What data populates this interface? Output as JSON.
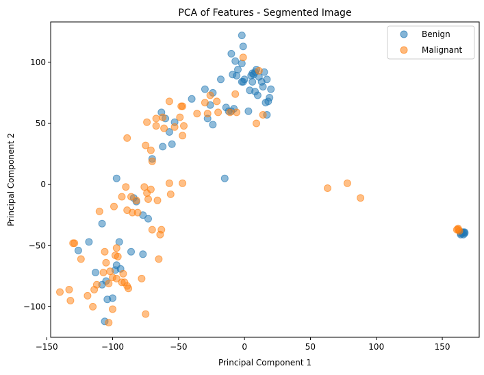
{
  "chart_data": {
    "type": "scatter",
    "title": "PCA of Features - Segmented Image",
    "xlabel": "Principal Component 1",
    "ylabel": "Principal Component 2",
    "xlim": [
      -147,
      178
    ],
    "ylim": [
      -125,
      133
    ],
    "xticks": [
      -150,
      -100,
      -50,
      0,
      50,
      100,
      150
    ],
    "yticks": [
      -100,
      -50,
      0,
      50,
      100
    ],
    "xtick_labels": [
      "−150",
      "−100",
      "−50",
      "0",
      "50",
      "100",
      "150"
    ],
    "ytick_labels": [
      "−100",
      "−50",
      "0",
      "50",
      "100"
    ],
    "grid": false,
    "legend_position": "top-right",
    "series": [
      {
        "name": "Benign",
        "color": "#1f77b4",
        "points": [
          [
            -2,
            122
          ],
          [
            -1,
            113
          ],
          [
            -10,
            107
          ],
          [
            -7,
            101
          ],
          [
            -2,
            99
          ],
          [
            -5,
            94
          ],
          [
            -9,
            90
          ],
          [
            -6,
            89
          ],
          [
            0,
            86
          ],
          [
            -2,
            84
          ],
          [
            -1,
            84
          ],
          [
            6,
            91
          ],
          [
            8,
            92
          ],
          [
            9,
            94
          ],
          [
            11,
            88
          ],
          [
            13,
            84
          ],
          [
            15,
            92
          ],
          [
            14,
            80
          ],
          [
            17,
            86
          ],
          [
            20,
            78
          ],
          [
            18,
            68
          ],
          [
            19,
            71
          ],
          [
            16,
            67
          ],
          [
            4,
            77
          ],
          [
            8,
            76
          ],
          [
            6,
            84
          ],
          [
            10,
            73
          ],
          [
            5,
            89
          ],
          [
            7,
            90
          ],
          [
            -18,
            86
          ],
          [
            -30,
            78
          ],
          [
            -24,
            75
          ],
          [
            -26,
            65
          ],
          [
            -14,
            63
          ],
          [
            -10,
            60
          ],
          [
            -8,
            62
          ],
          [
            3,
            60
          ],
          [
            17,
            57
          ],
          [
            -12,
            60
          ],
          [
            -28,
            54
          ],
          [
            -24,
            49
          ],
          [
            -40,
            70
          ],
          [
            -63,
            59
          ],
          [
            -60,
            54
          ],
          [
            -57,
            43
          ],
          [
            -53,
            51
          ],
          [
            -62,
            31
          ],
          [
            -55,
            33
          ],
          [
            -70,
            21
          ],
          [
            -15,
            5
          ],
          [
            -97,
            5
          ],
          [
            -84,
            -11
          ],
          [
            -82,
            -14
          ],
          [
            -77,
            -25
          ],
          [
            -73,
            -28
          ],
          [
            -118,
            -47
          ],
          [
            -126,
            -54
          ],
          [
            -108,
            -32
          ],
          [
            -95,
            -47
          ],
          [
            -98,
            -70
          ],
          [
            -97,
            -66
          ],
          [
            -94,
            -69
          ],
          [
            -86,
            -55
          ],
          [
            -77,
            -57
          ],
          [
            -113,
            -72
          ],
          [
            -105,
            -79
          ],
          [
            -108,
            -82
          ],
          [
            -104,
            -94
          ],
          [
            -100,
            -93
          ],
          [
            -106,
            -112
          ],
          [
            164,
            -41
          ],
          [
            165,
            -40
          ],
          [
            166,
            -39
          ],
          [
            167,
            -40
          ],
          [
            165,
            -39
          ],
          [
            166,
            -41
          ],
          [
            164,
            -40
          ],
          [
            167,
            -39
          ]
        ]
      },
      {
        "name": "Malignant",
        "color": "#ff7f0e",
        "points": [
          [
            -1,
            104
          ],
          [
            11,
            93
          ],
          [
            -7,
            74
          ],
          [
            -30,
            67
          ],
          [
            -26,
            73
          ],
          [
            -21,
            68
          ],
          [
            -36,
            58
          ],
          [
            -28,
            58
          ],
          [
            -20,
            59
          ],
          [
            -11,
            59
          ],
          [
            -6,
            59
          ],
          [
            9,
            50
          ],
          [
            14,
            57
          ],
          [
            -57,
            68
          ],
          [
            -48,
            64
          ],
          [
            -47,
            64
          ],
          [
            -62,
            55
          ],
          [
            -67,
            54
          ],
          [
            -61,
            46
          ],
          [
            -53,
            47
          ],
          [
            -46,
            48
          ],
          [
            -49,
            55
          ],
          [
            -74,
            51
          ],
          [
            -67,
            48
          ],
          [
            -89,
            38
          ],
          [
            -75,
            32
          ],
          [
            -71,
            28
          ],
          [
            -47,
            40
          ],
          [
            -70,
            19
          ],
          [
            -57,
            1
          ],
          [
            -47,
            1
          ],
          [
            -90,
            -2
          ],
          [
            -76,
            -2
          ],
          [
            -71,
            -4
          ],
          [
            -93,
            -10
          ],
          [
            -86,
            -10
          ],
          [
            -82,
            -13
          ],
          [
            -74,
            -7
          ],
          [
            -73,
            -12
          ],
          [
            -56,
            -8
          ],
          [
            -66,
            -13
          ],
          [
            -99,
            -18
          ],
          [
            -110,
            -22
          ],
          [
            -89,
            -21
          ],
          [
            -85,
            -23
          ],
          [
            -81,
            -23
          ],
          [
            -70,
            -37
          ],
          [
            -63,
            -37
          ],
          [
            -64,
            -41
          ],
          [
            -65,
            -61
          ],
          [
            -130,
            -48
          ],
          [
            -124,
            -61
          ],
          [
            -106,
            -55
          ],
          [
            -97,
            -52
          ],
          [
            -98,
            -58
          ],
          [
            -96,
            -59
          ],
          [
            -105,
            -64
          ],
          [
            -102,
            -71
          ],
          [
            -107,
            -72
          ],
          [
            -92,
            -73
          ],
          [
            -100,
            -76
          ],
          [
            -97,
            -77
          ],
          [
            -93,
            -80
          ],
          [
            -89,
            -83
          ],
          [
            -91,
            -80
          ],
          [
            -103,
            -81
          ],
          [
            -112,
            -82
          ],
          [
            -114,
            -86
          ],
          [
            -119,
            -91
          ],
          [
            -88,
            -85
          ],
          [
            -78,
            -77
          ],
          [
            -115,
            -100
          ],
          [
            -100,
            -102
          ],
          [
            -103,
            -113
          ],
          [
            -75,
            -106
          ],
          [
            -140,
            -88
          ],
          [
            -133,
            -86
          ],
          [
            -132,
            -95
          ],
          [
            -129,
            -48
          ],
          [
            63,
            -3
          ],
          [
            78,
            1
          ],
          [
            88,
            -11
          ],
          [
            161,
            -37
          ],
          [
            162,
            -36
          ],
          [
            163,
            -38
          ],
          [
            162,
            -37
          ]
        ]
      }
    ]
  }
}
